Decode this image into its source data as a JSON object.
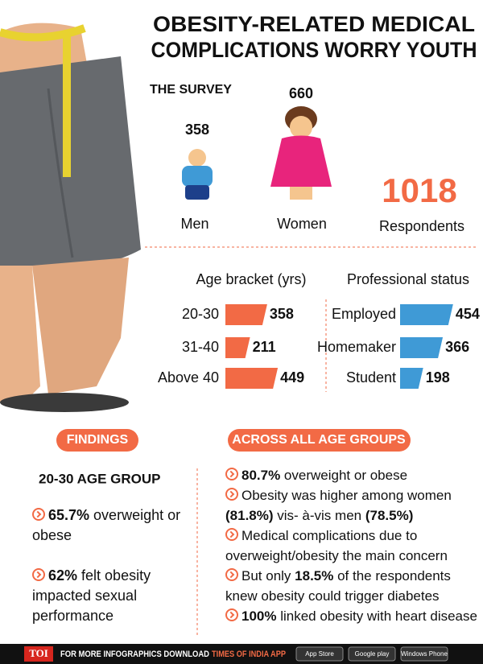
{
  "header": {
    "title_line1": "OBESITY-RELATED MEDICAL",
    "title_line2": "COMPLICATIONS WORRY YOUTH"
  },
  "survey": {
    "label": "THE SURVEY",
    "men": {
      "value": 358,
      "label": "Men"
    },
    "women": {
      "value": 660,
      "label": "Women"
    },
    "total": {
      "value": 1018,
      "label": "Respondents"
    }
  },
  "chart_data": [
    {
      "type": "bar",
      "title": "Age bracket (yrs)",
      "categories": [
        "20-30",
        "31-40",
        "Above 40"
      ],
      "values": [
        358,
        211,
        449
      ],
      "color": "#f26a45"
    },
    {
      "type": "bar",
      "title": "Professional status",
      "categories": [
        "Employed",
        "Homemaker",
        "Student"
      ],
      "values": [
        454,
        366,
        198
      ],
      "color": "#3f9ad6"
    }
  ],
  "findings": {
    "label": "FINDINGS",
    "group": "20-30 AGE GROUP",
    "items": [
      [
        {
          "text": "65.7%",
          "bold": true
        },
        {
          "text": " overweight or obese",
          "bold": false
        }
      ],
      [
        {
          "text": "62%",
          "bold": true
        },
        {
          "text": " felt obesity impacted sexual performance",
          "bold": false
        }
      ]
    ]
  },
  "across": {
    "label": "ACROSS ALL AGE GROUPS",
    "items": [
      [
        {
          "text": "80.7%",
          "bold": true
        },
        {
          "text": " overweight or obese",
          "bold": false
        }
      ],
      [
        {
          "text": "Obesity was higher among women ",
          "bold": false
        },
        {
          "text": "(81.8%)",
          "bold": true
        },
        {
          "text": " vis- à-vis men ",
          "bold": false
        },
        {
          "text": "(78.5%)",
          "bold": true
        }
      ],
      [
        {
          "text": "Medical complications due to overweight/obesity the main concern",
          "bold": false
        }
      ],
      [
        {
          "text": "But only ",
          "bold": false
        },
        {
          "text": "18.5%",
          "bold": true
        },
        {
          "text": " of the respondents knew obesity could trigger diabetes",
          "bold": false
        }
      ],
      [
        {
          "text": "100%",
          "bold": true
        },
        {
          "text": " linked obesity with heart disease",
          "bold": false
        }
      ]
    ]
  },
  "footer": {
    "brand": "TOI",
    "text": "FOR MORE INFOGRAPHICS DOWNLOAD",
    "app": "TIMES OF INDIA APP",
    "badges": [
      "App Store",
      "Google play",
      "Windows Phone"
    ]
  }
}
